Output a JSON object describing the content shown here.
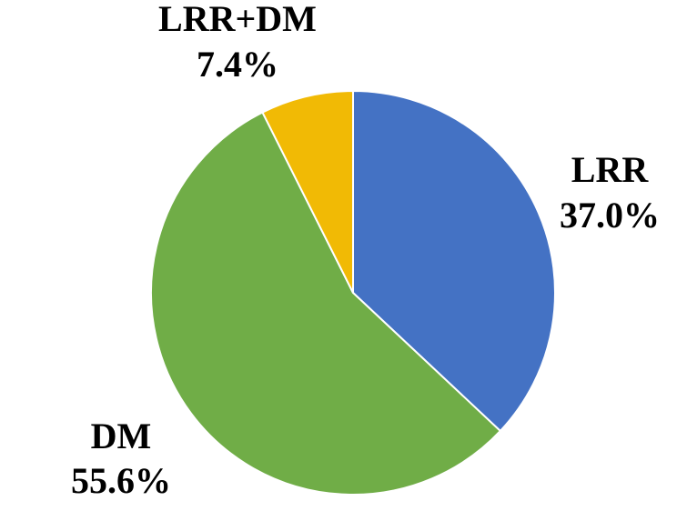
{
  "chart_data": {
    "type": "pie",
    "slices": [
      {
        "label": "LRR",
        "percent_text": "37.0%",
        "value": 37.0,
        "color": "#4472C4"
      },
      {
        "label": "DM",
        "percent_text": "55.6%",
        "value": 55.6,
        "color": "#70AD47"
      },
      {
        "label": "LRR+DM",
        "percent_text": "7.4%",
        "value": 7.4,
        "color": "#F1BA05"
      }
    ],
    "start_angle": "12 o'clock",
    "direction": "clockwise",
    "legend": "none"
  }
}
